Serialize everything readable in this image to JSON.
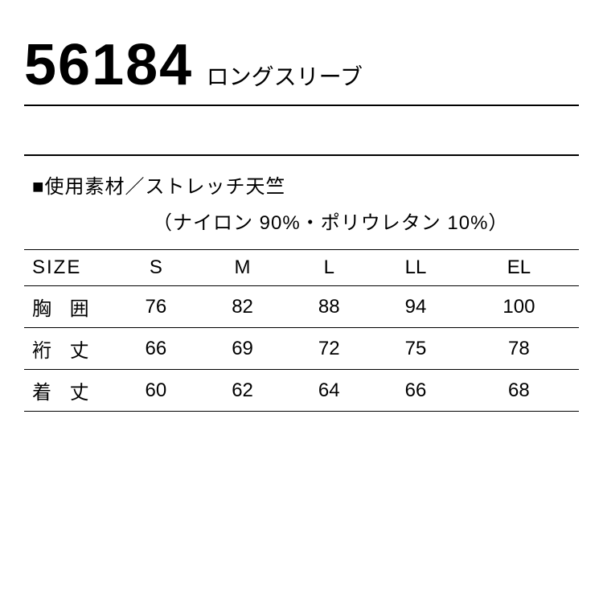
{
  "header": {
    "product_code": "56184",
    "product_name": "ロングスリーブ"
  },
  "material": {
    "line1": "■使用素材／ストレッチ天竺",
    "line2": "（ナイロン 90%・ポリウレタン 10%）"
  },
  "size_table": {
    "type": "table",
    "header_label": "SIZE",
    "columns": [
      "S",
      "M",
      "L",
      "LL",
      "EL"
    ],
    "rows": [
      {
        "label": "胸 囲",
        "values": [
          "76",
          "82",
          "88",
          "94",
          "100"
        ]
      },
      {
        "label": "裄 丈",
        "values": [
          "66",
          "69",
          "72",
          "75",
          "78"
        ]
      },
      {
        "label": "着 丈",
        "values": [
          "60",
          "62",
          "64",
          "66",
          "68"
        ]
      }
    ],
    "font_size": 24,
    "border_color": "#000000",
    "background_color": "#ffffff"
  },
  "colors": {
    "text": "#000000",
    "background": "#ffffff",
    "border": "#000000"
  }
}
